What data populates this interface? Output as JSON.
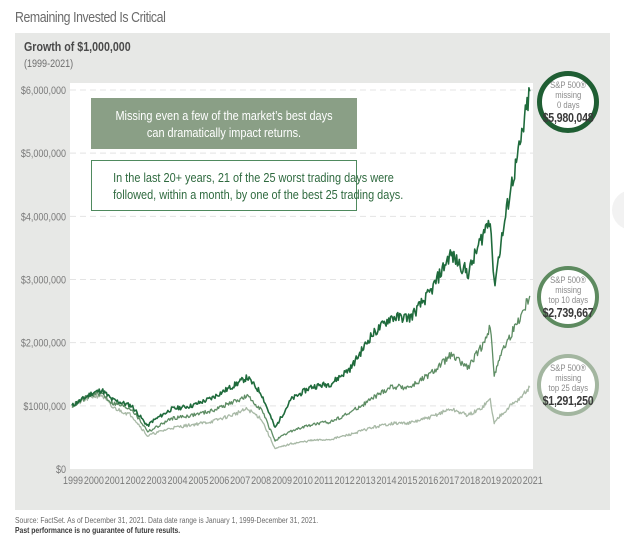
{
  "page_title": "Remaining Invested Is Critical",
  "chart_data": {
    "type": "line",
    "title": "Growth of $1,000,000",
    "subtitle": "(1999-2021)",
    "xlabel": "",
    "ylabel": "",
    "xlim": [
      1999,
      2022
    ],
    "ylim": [
      0,
      6000000
    ],
    "grid": true,
    "x_ticks": [
      "1999",
      "2000",
      "2001",
      "2002",
      "2003",
      "2004",
      "2005",
      "2006",
      "2007",
      "2008",
      "2009",
      "2010",
      "2011",
      "2012",
      "2013",
      "2014",
      "2015",
      "2016",
      "2017",
      "2018",
      "2019",
      "2020",
      "2021"
    ],
    "y_ticks": [
      {
        "value": 0,
        "label": "$0"
      },
      {
        "value": 1000000,
        "label": "$1000,000"
      },
      {
        "value": 2000000,
        "label": "$2,000,000"
      },
      {
        "value": 3000000,
        "label": "$3,000,000"
      },
      {
        "value": 4000000,
        "label": "$4,000,000"
      },
      {
        "value": 5000000,
        "label": "$5,000,000"
      },
      {
        "value": 6000000,
        "label": "$6,000,000"
      }
    ],
    "x": [
      1999.0,
      2000.0,
      2000.5,
      2001.0,
      2002.0,
      2002.8,
      2003.0,
      2004.0,
      2005.0,
      2006.0,
      2007.0,
      2007.8,
      2008.5,
      2009.2,
      2010.0,
      2011.0,
      2012.0,
      2013.0,
      2014.0,
      2015.0,
      2016.0,
      2017.0,
      2018.0,
      2018.9,
      2019.5,
      2020.0,
      2020.2,
      2020.5,
      2021.0,
      2021.5,
      2021.99
    ],
    "series": [
      {
        "name": "S&P 500 missing 0 days",
        "color": "#1f6b3c",
        "values": [
          1000000,
          1200000,
          1250000,
          1100000,
          1000000,
          680000,
          750000,
          950000,
          1000000,
          1120000,
          1300000,
          1450000,
          1200000,
          650000,
          1100000,
          1300000,
          1350000,
          1600000,
          2100000,
          2400000,
          2400000,
          2800000,
          3400000,
          3100000,
          3600000,
          4000000,
          2900000,
          3500000,
          4400000,
          5100000,
          5980048
        ]
      },
      {
        "name": "S&P 500 missing top 10 days",
        "color": "#5e8d64",
        "values": [
          1000000,
          1180000,
          1200000,
          1050000,
          950000,
          600000,
          620000,
          800000,
          850000,
          920000,
          1050000,
          1150000,
          950000,
          450000,
          600000,
          700000,
          750000,
          900000,
          1100000,
          1300000,
          1300000,
          1500000,
          1800000,
          1600000,
          1900000,
          2250000,
          1500000,
          1800000,
          2100000,
          2400000,
          2739667
        ]
      },
      {
        "name": "S&P 500 missing top 25 days",
        "color": "#a8b9a6",
        "values": [
          1000000,
          1150000,
          1170000,
          980000,
          850000,
          520000,
          550000,
          650000,
          700000,
          750000,
          850000,
          950000,
          800000,
          320000,
          400000,
          450000,
          470000,
          550000,
          650000,
          720000,
          730000,
          820000,
          950000,
          850000,
          950000,
          1100000,
          720000,
          850000,
          1000000,
          1120000,
          1291250
        ]
      }
    ],
    "annotations": [
      "Missing even a few of the market's best days can dramatically impact returns.",
      "In the last 20+ years, 21 of the 25 worst trading days were followed, within a month, by one of the best 25 trading days."
    ]
  },
  "callouts": {
    "filled": [
      "Missing even a few of the market’s best days",
      "can dramatically impact returns."
    ],
    "outlined": [
      "In the last 20+ years, 21 of the 25 worst trading days were",
      "followed, within a month, by one of the best 25 trading days."
    ]
  },
  "badges": [
    {
      "line1": "S&P 500®",
      "line2": "missing",
      "line3": "0 days",
      "value": "$5,980,048",
      "color": "#1f5e33"
    },
    {
      "line1": "S&P 500®",
      "line2": "missing",
      "line3": "top 10 days",
      "value": "$2,739,667",
      "color": "#5d8a5f"
    },
    {
      "line1": "S&P 500®",
      "line2": "missing",
      "line3": "top 25 days",
      "value": "$1,291,250",
      "color": "#a3b6a0"
    }
  ],
  "footer": {
    "source": "Source: FactSet. As of December 31, 2021. Data date range is January 1, 1999-December 31, 2021.",
    "disclaimer": "Past performance is no guarantee of future results."
  }
}
